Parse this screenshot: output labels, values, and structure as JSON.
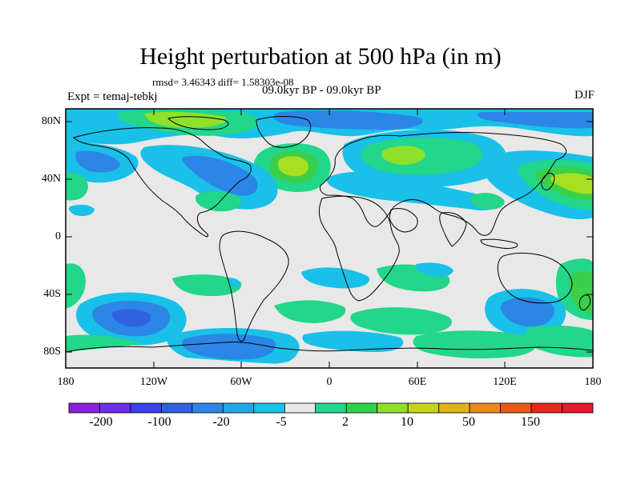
{
  "title": "Height perturbation at 500 hPa (in m)",
  "stats_line": "rmsd= 3.46343 diff= 1.58303e-08",
  "period_line": "09.0kyr BP - 09.0kyr BP",
  "experiment_label": "Expt = temaj-tebkj",
  "season_label": "DJF",
  "y_tick_labels": [
    "80N",
    "40N",
    "0",
    "40S",
    "80S"
  ],
  "x_tick_labels": [
    "180",
    "120W",
    "60W",
    "0",
    "60E",
    "120E",
    "180"
  ],
  "colorbar": {
    "colors": [
      "#8b1fe0",
      "#6a2fe6",
      "#3a3fe6",
      "#2f62e0",
      "#2b86e6",
      "#1ea8e8",
      "#19c0e8",
      "#e8e8e8",
      "#22d68a",
      "#2fd24a",
      "#8ee02a",
      "#c6d41a",
      "#e0b21a",
      "#e88a1a",
      "#e85a1a",
      "#e62a1a",
      "#e61a2a"
    ],
    "labels": [
      "-200",
      "-100",
      "-20",
      "-5",
      "2",
      "10",
      "50",
      "150"
    ]
  },
  "palette": {
    "background_field": "#e8e8e8",
    "light_blue": "#19c0e8",
    "mid_blue": "#2b9fe0",
    "dark_blue": "#2f7fd8",
    "light_green": "#22d68a",
    "mid_green": "#3ccf4a",
    "yellow_green": "#a8e020"
  }
}
